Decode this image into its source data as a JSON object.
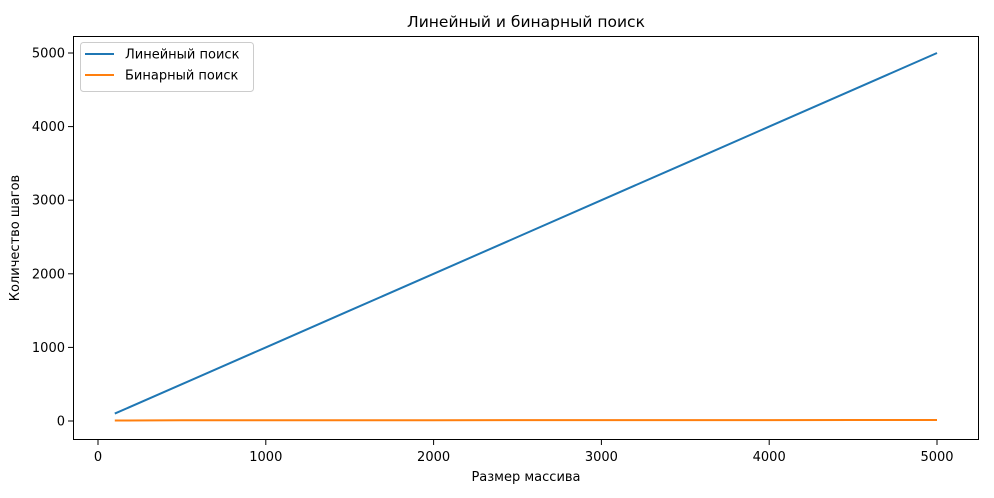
{
  "chart_data": {
    "type": "line",
    "title": "Линейный и бинарный поиск",
    "xlabel": "Размер массива",
    "ylabel": "Количество шагов",
    "xlim": [
      -145,
      5245
    ],
    "ylim": [
      -245,
      5245
    ],
    "xticks": [
      0,
      1000,
      2000,
      3000,
      4000,
      5000
    ],
    "yticks": [
      0,
      1000,
      2000,
      3000,
      4000,
      5000
    ],
    "grid": false,
    "legend_position": "upper left",
    "series": [
      {
        "name": "Линейный поиск",
        "color": "#1f77b4",
        "x": [
          100,
          500,
          1000,
          1500,
          2000,
          2500,
          3000,
          3500,
          4000,
          4500,
          5000
        ],
        "y": [
          100,
          500,
          1000,
          1500,
          2000,
          2500,
          3000,
          3500,
          4000,
          4500,
          5000
        ]
      },
      {
        "name": "Бинарный поиск",
        "color": "#ff7f0e",
        "x": [
          100,
          500,
          1000,
          1500,
          2000,
          2500,
          3000,
          3500,
          4000,
          4500,
          5000
        ],
        "y": [
          7,
          9,
          10,
          11,
          11,
          12,
          12,
          12,
          12,
          13,
          13
        ]
      }
    ]
  }
}
